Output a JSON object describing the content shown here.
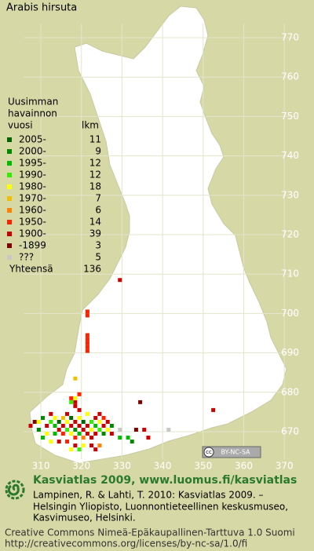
{
  "title": "Arabis hirsuta",
  "legend": {
    "heading": [
      "Uusimman",
      "havainnon",
      "vuosi"
    ],
    "count_heading": "lkm",
    "items": [
      {
        "label": "2005-",
        "count": 11,
        "color": "#006400"
      },
      {
        "label": "2000-",
        "count": 9,
        "color": "#008800"
      },
      {
        "label": "1995-",
        "count": 12,
        "color": "#00bb00"
      },
      {
        "label": "1990-",
        "count": 12,
        "color": "#33ee00"
      },
      {
        "label": "1980-",
        "count": 18,
        "color": "#ffff00"
      },
      {
        "label": "1970-",
        "count": 7,
        "color": "#f0c000"
      },
      {
        "label": "1960-",
        "count": 6,
        "color": "#ff8000"
      },
      {
        "label": "1950-",
        "count": 14,
        "color": "#ff2000"
      },
      {
        "label": "1900-",
        "count": 39,
        "color": "#cc0000"
      },
      {
        "label": "-1899",
        "count": 3,
        "color": "#800000"
      },
      {
        "label": "???",
        "count": 5,
        "color": "#c8c8c8"
      }
    ],
    "total_label": "Yhteensä",
    "total": 136
  },
  "map": {
    "xticks": [
      310,
      320,
      330,
      340,
      350,
      360,
      370
    ],
    "yticks": [
      670,
      680,
      690,
      700,
      710,
      720,
      730,
      740,
      750,
      760,
      770
    ]
  },
  "records": [
    [
      308,
      672,
      9
    ],
    [
      309,
      672,
      4
    ],
    [
      310,
      673,
      1
    ],
    [
      311,
      671,
      8
    ],
    [
      312,
      672,
      3
    ],
    [
      312,
      674,
      8
    ],
    [
      313,
      673,
      4
    ],
    [
      313,
      671,
      2
    ],
    [
      314,
      672,
      0
    ],
    [
      314,
      670,
      8
    ],
    [
      315,
      673,
      5
    ],
    [
      315,
      671,
      8
    ],
    [
      316,
      672,
      4
    ],
    [
      316,
      670,
      3
    ],
    [
      316,
      674,
      8
    ],
    [
      317,
      673,
      0
    ],
    [
      317,
      671,
      8
    ],
    [
      317,
      669,
      4
    ],
    [
      318,
      672,
      8
    ],
    [
      318,
      670,
      1
    ],
    [
      318,
      668,
      7
    ],
    [
      318,
      676,
      8
    ],
    [
      318,
      677,
      8
    ],
    [
      317,
      677,
      3
    ],
    [
      319,
      673,
      4
    ],
    [
      319,
      671,
      8
    ],
    [
      319,
      669,
      2
    ],
    [
      320,
      672,
      0
    ],
    [
      320,
      670,
      8
    ],
    [
      320,
      668,
      6
    ],
    [
      321,
      674,
      4
    ],
    [
      321,
      671,
      8
    ],
    [
      321,
      669,
      8
    ],
    [
      322,
      672,
      3
    ],
    [
      322,
      670,
      4
    ],
    [
      322,
      668,
      8
    ],
    [
      323,
      673,
      8
    ],
    [
      323,
      671,
      2
    ],
    [
      323,
      669,
      8
    ],
    [
      324,
      672,
      4
    ],
    [
      324,
      670,
      3
    ],
    [
      325,
      671,
      8
    ],
    [
      325,
      669,
      1
    ],
    [
      325,
      673,
      7
    ],
    [
      326,
      672,
      8
    ],
    [
      326,
      670,
      4
    ],
    [
      327,
      671,
      1
    ],
    [
      327,
      669,
      8
    ],
    [
      324,
      674,
      8
    ],
    [
      319,
      675,
      8
    ],
    [
      315,
      669,
      7
    ],
    [
      313,
      669,
      2
    ],
    [
      311,
      669,
      4
    ],
    [
      309,
      670,
      1
    ],
    [
      307,
      671,
      8
    ],
    [
      310,
      668,
      2
    ],
    [
      312,
      667,
      4
    ],
    [
      314,
      667,
      8
    ],
    [
      316,
      667,
      7
    ],
    [
      318,
      666,
      8
    ],
    [
      320,
      666,
      4
    ],
    [
      322,
      666,
      8
    ],
    [
      324,
      666,
      6
    ],
    [
      323,
      665,
      8
    ],
    [
      319,
      665,
      3
    ],
    [
      317,
      665,
      4
    ],
    [
      329,
      668,
      2
    ],
    [
      329,
      670,
      10
    ],
    [
      331,
      668,
      2
    ],
    [
      332,
      667,
      1
    ],
    [
      333,
      670,
      9
    ],
    [
      334,
      677,
      9
    ],
    [
      335,
      670,
      8
    ],
    [
      336,
      668,
      8
    ],
    [
      341,
      670,
      10
    ],
    [
      352,
      675,
      8
    ],
    [
      329,
      708,
      8
    ],
    [
      321,
      700,
      7
    ],
    [
      321,
      699,
      7
    ],
    [
      321,
      694,
      7
    ],
    [
      321,
      693,
      7
    ],
    [
      321,
      692,
      7
    ],
    [
      321,
      691,
      7
    ],
    [
      321,
      690,
      7
    ],
    [
      318,
      683,
      5
    ],
    [
      317,
      678,
      7
    ],
    [
      318,
      678,
      4
    ],
    [
      319,
      679,
      7
    ]
  ],
  "badge": {
    "symbol": "cc",
    "label": "BY-NC-SA"
  },
  "footer": {
    "headline": "Kasviatlas 2009, www.luomus.fi/kasviatlas",
    "citation": [
      "Lampinen, R. & Lahti, T. 2010: Kasviatlas 2009. –",
      "Helsingin Yliopisto, Luonnontieteellinen keskusmuseo,",
      "Kasvimuseo, Helsinki."
    ],
    "license": [
      "Creative Commons Nimeä-Epäkaupallinen-Tarttuva 1.0 Suomi",
      "http://creativecommons.org/licenses/by-nc-sa/1.0/fi"
    ]
  }
}
